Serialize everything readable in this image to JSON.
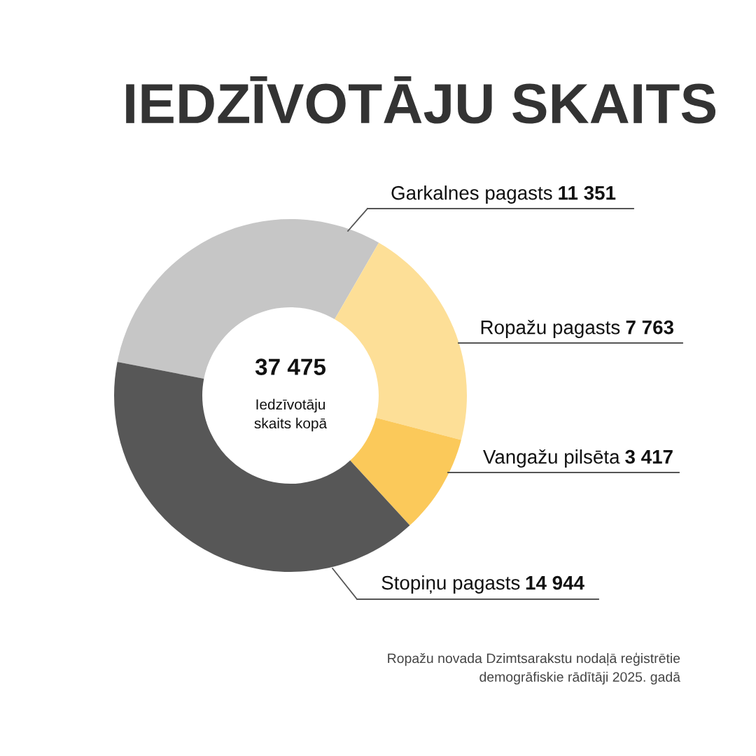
{
  "chart_data": {
    "type": "donut",
    "title": "IEDZĪVOTĀJU SKAITS",
    "categories": [
      "Garkalnes pagasts",
      "Ropažu pagasts",
      "Vangažu pilsēta",
      "Stopiņu pagasts"
    ],
    "values": [
      11351,
      7763,
      3417,
      14944
    ],
    "value_labels": [
      "11 351",
      "7 763",
      "3 417",
      "14 944"
    ],
    "colors": [
      "#c6c6c6",
      "#fddf97",
      "#fbc95a",
      "#575757"
    ],
    "annotations": [
      "37 475",
      "Iedzīvotāju skaits kopā",
      "Ropažu novada Dzimtsarakstu nodaļā reģistrētie demogrāfiskie rādītāji 2025. gadā"
    ]
  }
}
